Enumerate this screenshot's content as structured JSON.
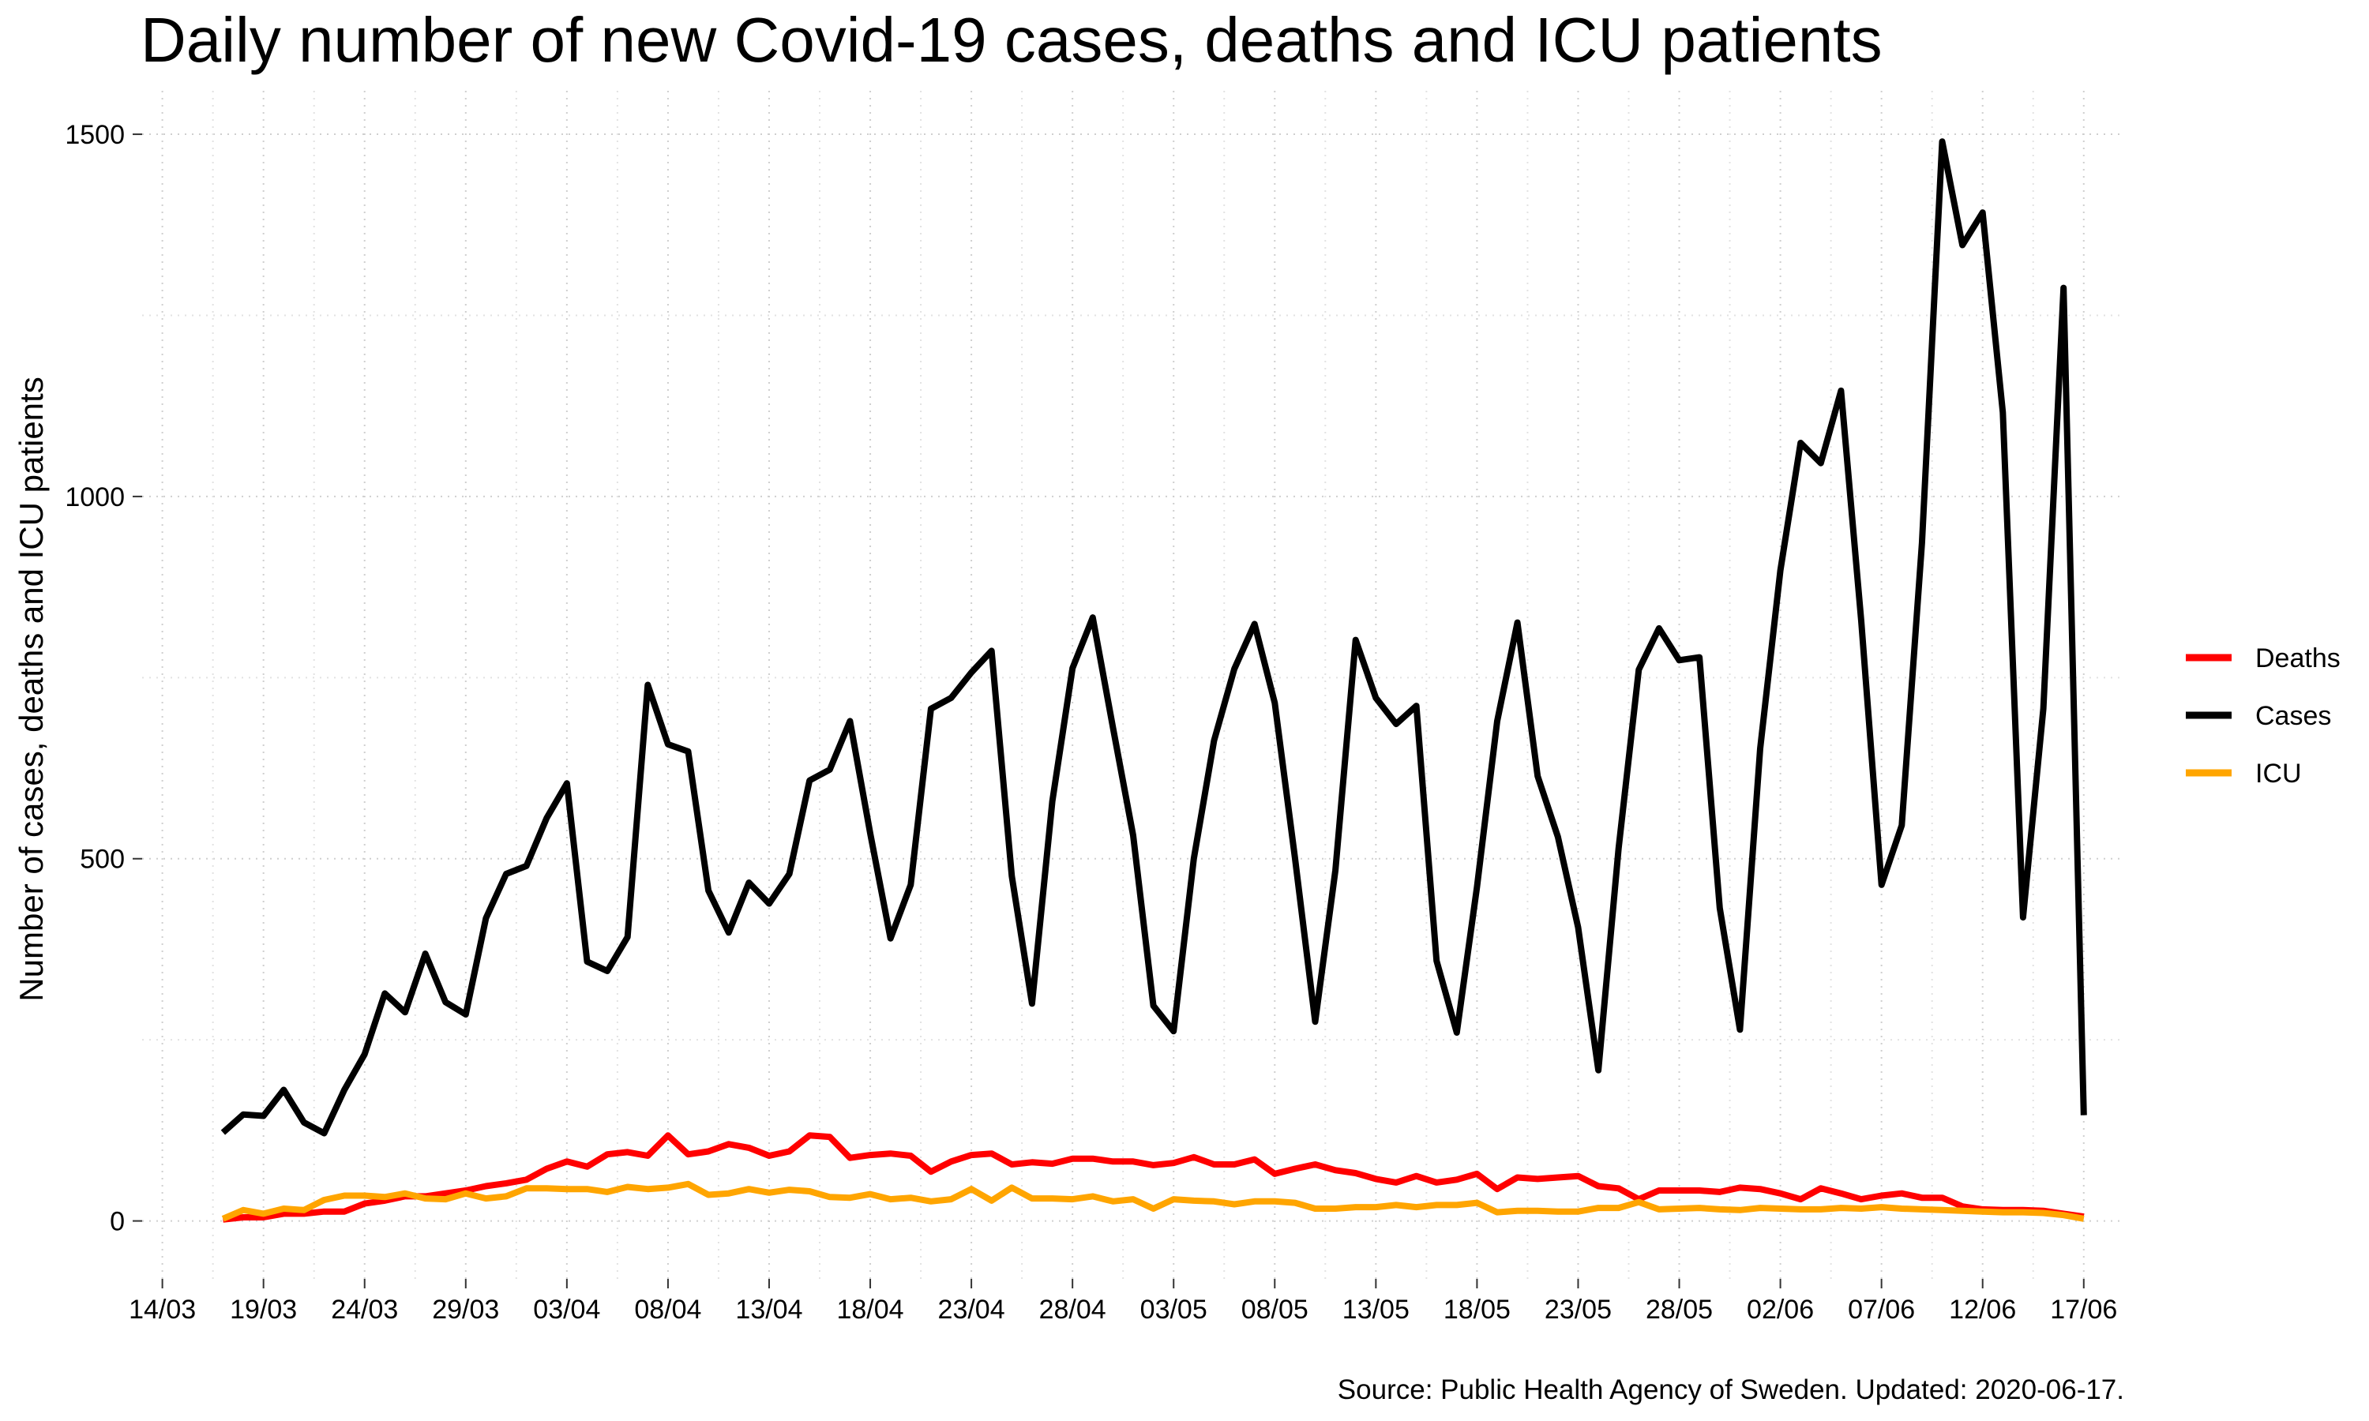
{
  "chart_data": {
    "type": "line",
    "title": "Daily number of new Covid-19 cases, deaths and ICU patients",
    "ylabel": "Number of cases, deaths and ICU patients",
    "xlabel": "",
    "caption": "Source: Public Health Agency of Sweden. Updated: 2020-06-17.",
    "ylim": [
      -80,
      1560
    ],
    "yticks": [
      0,
      500,
      1000,
      1500
    ],
    "xlim": [
      "2020-03-13",
      "2020-06-19"
    ],
    "xticks": [
      "2020-03-14",
      "2020-03-19",
      "2020-03-24",
      "2020-03-29",
      "2020-04-03",
      "2020-04-08",
      "2020-04-13",
      "2020-04-18",
      "2020-04-23",
      "2020-04-28",
      "2020-05-03",
      "2020-05-08",
      "2020-05-13",
      "2020-05-18",
      "2020-05-23",
      "2020-05-28",
      "2020-06-02",
      "2020-06-07",
      "2020-06-12",
      "2020-06-17"
    ],
    "xtick_labels": [
      "14/03",
      "19/03",
      "24/03",
      "29/03",
      "03/04",
      "08/04",
      "13/04",
      "18/04",
      "23/04",
      "28/04",
      "03/05",
      "08/05",
      "13/05",
      "18/05",
      "23/05",
      "28/05",
      "02/06",
      "07/06",
      "12/06",
      "17/06"
    ],
    "grid": true,
    "legend_position": "right",
    "x_start": "2020-03-17",
    "series": [
      {
        "name": "Deaths",
        "color": "#ff0000",
        "values": [
          2,
          5,
          5,
          10,
          10,
          13,
          13,
          24,
          28,
          34,
          34,
          38,
          42,
          48,
          52,
          57,
          72,
          82,
          75,
          92,
          95,
          90,
          118,
          92,
          96,
          106,
          101,
          90,
          96,
          118,
          116,
          87,
          91,
          93,
          90,
          68,
          82,
          91,
          93,
          78,
          81,
          79,
          86,
          86,
          82,
          82,
          77,
          80,
          88,
          78,
          78,
          85,
          65,
          72,
          78,
          70,
          66,
          58,
          53,
          62,
          53,
          57,
          65,
          44,
          60,
          58,
          60,
          62,
          48,
          45,
          30,
          42,
          42,
          42,
          40,
          46,
          44,
          38,
          30,
          45,
          38,
          30,
          35,
          38,
          32,
          32,
          20,
          16,
          15,
          15,
          14,
          10,
          6
        ]
      },
      {
        "name": "Cases",
        "color": "#000000",
        "values": [
          122,
          147,
          145,
          181,
          136,
          121,
          181,
          230,
          314,
          288,
          369,
          302,
          285,
          418,
          479,
          490,
          556,
          604,
          358,
          345,
          392,
          740,
          658,
          648,
          456,
          398,
          467,
          438,
          479,
          608,
          623,
          690,
          535,
          390,
          464,
          707,
          722,
          757,
          787,
          476,
          300,
          579,
          763,
          833,
          681,
          532,
          297,
          262,
          500,
          663,
          762,
          824,
          715,
          501,
          275,
          484,
          802,
          722,
          686,
          711,
          359,
          260,
          461,
          690,
          826,
          614,
          530,
          405,
          208,
          514,
          761,
          818,
          774,
          778,
          432,
          264,
          652,
          898,
          1074,
          1046,
          1146,
          828,
          464,
          546,
          936,
          1490,
          1347,
          1392,
          1116,
          419,
          707,
          1288,
          146
        ]
      },
      {
        "name": "ICU",
        "color": "#ffa500",
        "values": [
          3,
          15,
          10,
          17,
          15,
          29,
          35,
          35,
          33,
          38,
          31,
          30,
          38,
          31,
          34,
          45,
          45,
          44,
          44,
          40,
          47,
          44,
          46,
          51,
          36,
          38,
          44,
          39,
          43,
          41,
          33,
          32,
          37,
          30,
          32,
          27,
          30,
          44,
          28,
          46,
          31,
          31,
          30,
          34,
          27,
          30,
          17,
          30,
          28,
          27,
          23,
          27,
          27,
          25,
          17,
          17,
          19,
          19,
          22,
          19,
          22,
          22,
          25,
          12,
          14,
          14,
          13,
          13,
          18,
          18,
          26,
          16,
          17,
          18,
          16,
          15,
          18,
          17,
          16,
          16,
          18,
          17,
          19,
          17,
          16,
          15,
          14,
          13,
          12,
          12,
          11,
          8,
          3
        ]
      }
    ]
  }
}
